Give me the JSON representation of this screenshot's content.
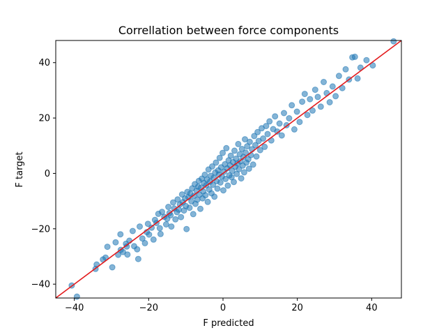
{
  "chart_data": {
    "type": "scatter",
    "title": "Correllation between force components",
    "xlabel": "F predicted",
    "ylabel": "F target",
    "xlim": [
      -45,
      48
    ],
    "ylim": [
      -45,
      48
    ],
    "xticks": [
      -40,
      -20,
      0,
      20,
      40
    ],
    "yticks": [
      -40,
      -20,
      0,
      20,
      40
    ],
    "grid": false,
    "point_color": "#1f77b4",
    "point_alpha": 0.55,
    "reference_line": {
      "slope": 1,
      "intercept": 0,
      "color": "#e31a1c"
    },
    "points": [
      [
        -40.7,
        -40.5
      ],
      [
        -39.3,
        -44.5
      ],
      [
        -34.3,
        -34.5
      ],
      [
        -34.0,
        -32.9
      ],
      [
        -32.3,
        -31.1
      ],
      [
        -31.6,
        -30.4
      ],
      [
        -31.1,
        -26.5
      ],
      [
        -29.8,
        -33.9
      ],
      [
        -28.9,
        -24.9
      ],
      [
        -28.2,
        -29.4
      ],
      [
        -27.6,
        -22.0
      ],
      [
        -27.5,
        -27.6
      ],
      [
        -26.9,
        -28.4
      ],
      [
        -26.1,
        -25.4
      ],
      [
        -25.9,
        -26.4
      ],
      [
        -25.7,
        -29.3
      ],
      [
        -25.2,
        -24.3
      ],
      [
        -24.3,
        -20.8
      ],
      [
        -23.9,
        -26.3
      ],
      [
        -23.1,
        -27.4
      ],
      [
        -22.8,
        -30.9
      ],
      [
        -22.4,
        -19.2
      ],
      [
        -21.7,
        -23.5
      ],
      [
        -21.0,
        -25.2
      ],
      [
        -20.5,
        -21.2
      ],
      [
        -20.2,
        -18.2
      ],
      [
        -19.9,
        -22.1
      ],
      [
        -19.2,
        -19.6
      ],
      [
        -18.7,
        -23.9
      ],
      [
        -18.3,
        -16.8
      ],
      [
        -17.9,
        -17.9
      ],
      [
        -17.4,
        -14.6
      ],
      [
        -17.0,
        -19.8
      ],
      [
        -16.8,
        -21.9
      ],
      [
        -16.4,
        -13.9
      ],
      [
        -15.8,
        -15.7
      ],
      [
        -15.3,
        -18.4
      ],
      [
        -15.0,
        -16.4
      ],
      [
        -14.7,
        -12.1
      ],
      [
        -14.4,
        -14.3
      ],
      [
        -14.1,
        -15.1
      ],
      [
        -13.9,
        -19.2
      ],
      [
        -13.4,
        -10.5
      ],
      [
        -13.1,
        -12.7
      ],
      [
        -12.8,
        -16.6
      ],
      [
        -12.4,
        -14.0
      ],
      [
        -12.2,
        -9.4
      ],
      [
        -11.9,
        -13.1
      ],
      [
        -11.6,
        -11.2
      ],
      [
        -11.3,
        -15.8
      ],
      [
        -11.0,
        -7.6
      ],
      [
        -10.8,
        -10.4
      ],
      [
        -10.5,
        -13.4
      ],
      [
        -10.2,
        -9.0
      ],
      [
        -10.0,
        -11.8
      ],
      [
        -9.8,
        -20.1
      ],
      [
        -9.6,
        -6.7
      ],
      [
        -9.3,
        -8.6
      ],
      [
        -9.0,
        -12.4
      ],
      [
        -8.8,
        -7.3
      ],
      [
        -8.5,
        -10.1
      ],
      [
        -8.3,
        -5.4
      ],
      [
        -8.0,
        -14.7
      ],
      [
        -7.8,
        -8.1
      ],
      [
        -7.6,
        -3.9
      ],
      [
        -7.4,
        -11.0
      ],
      [
        -7.1,
        -6.2
      ],
      [
        -6.9,
        -9.5
      ],
      [
        -6.7,
        -4.8
      ],
      [
        -6.5,
        -2.7
      ],
      [
        -6.3,
        -7.7
      ],
      [
        -6.1,
        -12.8
      ],
      [
        -5.9,
        -5.1
      ],
      [
        -5.7,
        -1.9
      ],
      [
        -5.5,
        -9.0
      ],
      [
        -5.3,
        -6.5
      ],
      [
        -5.1,
        -3.5
      ],
      [
        -4.9,
        -0.5
      ],
      [
        -4.7,
        -7.9
      ],
      [
        -4.5,
        -4.3
      ],
      [
        -4.3,
        -2.2
      ],
      [
        -4.1,
        -10.3
      ],
      [
        -3.9,
        1.4
      ],
      [
        -3.7,
        -5.8
      ],
      [
        -3.5,
        -3.0
      ],
      [
        -3.3,
        -0.9
      ],
      [
        -3.1,
        -7.2
      ],
      [
        -2.9,
        2.5
      ],
      [
        -2.7,
        -4.1
      ],
      [
        -2.5,
        -1.6
      ],
      [
        -2.3,
        -8.4
      ],
      [
        -2.1,
        0.3
      ],
      [
        -1.9,
        3.9
      ],
      [
        -1.7,
        -2.8
      ],
      [
        -1.5,
        -5.5
      ],
      [
        -1.3,
        1.1
      ],
      [
        -1.1,
        -0.4
      ],
      [
        -0.9,
        5.6
      ],
      [
        -0.7,
        -3.3
      ],
      [
        -0.5,
        2.2
      ],
      [
        -0.3,
        -1.2
      ],
      [
        -0.1,
        7.4
      ],
      [
        0.1,
        -6.1
      ],
      [
        0.3,
        0.6
      ],
      [
        0.5,
        3.3
      ],
      [
        0.7,
        -2.0
      ],
      [
        0.9,
        9.1
      ],
      [
        1.1,
        1.8
      ],
      [
        1.3,
        -4.4
      ],
      [
        1.5,
        4.7
      ],
      [
        1.7,
        -0.7
      ],
      [
        1.9,
        2.9
      ],
      [
        2.1,
        6.4
      ],
      [
        2.3,
        -1.4
      ],
      [
        2.5,
        0.9
      ],
      [
        2.7,
        4.1
      ],
      [
        2.9,
        -3.1
      ],
      [
        3.1,
        8.2
      ],
      [
        3.3,
        2.4
      ],
      [
        3.5,
        5.3
      ],
      [
        3.7,
        -0.2
      ],
      [
        3.9,
        3.6
      ],
      [
        4.1,
        10.6
      ],
      [
        4.3,
        1.5
      ],
      [
        4.5,
        6.9
      ],
      [
        4.7,
        4.4
      ],
      [
        4.9,
        -1.8
      ],
      [
        5.1,
        8.8
      ],
      [
        5.3,
        2.8
      ],
      [
        5.5,
        5.9
      ],
      [
        5.7,
        0.4
      ],
      [
        5.9,
        12.3
      ],
      [
        6.1,
        7.5
      ],
      [
        6.3,
        3.9
      ],
      [
        6.5,
        9.8
      ],
      [
        6.8,
        5.1
      ],
      [
        7.0,
        1.7
      ],
      [
        7.2,
        11.4
      ],
      [
        7.5,
        6.6
      ],
      [
        7.8,
        8.7
      ],
      [
        8.1,
        3.2
      ],
      [
        8.4,
        13.5
      ],
      [
        8.7,
        10.2
      ],
      [
        9.0,
        6.1
      ],
      [
        9.3,
        14.9
      ],
      [
        9.6,
        11.7
      ],
      [
        10.0,
        8.4
      ],
      [
        10.4,
        16.3
      ],
      [
        10.8,
        12.6
      ],
      [
        11.2,
        9.6
      ],
      [
        11.6,
        17.1
      ],
      [
        12.0,
        14.2
      ],
      [
        12.5,
        18.8
      ],
      [
        13.0,
        11.9
      ],
      [
        13.5,
        16.0
      ],
      [
        14.0,
        20.6
      ],
      [
        14.6,
        15.1
      ],
      [
        15.2,
        18.0
      ],
      [
        15.8,
        13.7
      ],
      [
        16.4,
        21.8
      ],
      [
        17.1,
        17.4
      ],
      [
        17.8,
        19.9
      ],
      [
        18.5,
        24.6
      ],
      [
        19.2,
        15.9
      ],
      [
        19.9,
        22.3
      ],
      [
        20.6,
        18.6
      ],
      [
        21.3,
        25.9
      ],
      [
        22.0,
        28.7
      ],
      [
        22.7,
        21.1
      ],
      [
        23.4,
        26.8
      ],
      [
        24.1,
        22.7
      ],
      [
        24.8,
        30.2
      ],
      [
        25.5,
        27.6
      ],
      [
        26.3,
        24.1
      ],
      [
        27.1,
        33.0
      ],
      [
        27.9,
        29.0
      ],
      [
        28.7,
        25.7
      ],
      [
        29.5,
        31.4
      ],
      [
        30.3,
        27.9
      ],
      [
        31.2,
        35.2
      ],
      [
        32.1,
        30.8
      ],
      [
        33.0,
        37.6
      ],
      [
        33.9,
        33.9
      ],
      [
        34.8,
        41.9
      ],
      [
        35.5,
        42.1
      ],
      [
        36.2,
        34.3
      ],
      [
        37.0,
        38.2
      ],
      [
        38.6,
        40.9
      ],
      [
        40.3,
        39.0
      ],
      [
        45.9,
        47.7
      ]
    ]
  }
}
